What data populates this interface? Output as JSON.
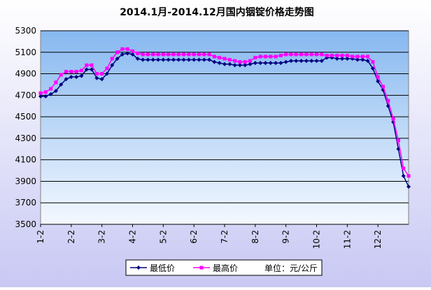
{
  "chart_data": {
    "type": "line",
    "title": "2014.1月-2014.12月国内铟锭价格走势图",
    "unit_label": "单位：元/公斤",
    "categories": [
      "1-2",
      null,
      null,
      null,
      null,
      null,
      "2-2",
      null,
      null,
      null,
      null,
      null,
      "3-2",
      null,
      null,
      null,
      null,
      null,
      "4-2",
      null,
      null,
      null,
      null,
      null,
      "5-2",
      null,
      null,
      null,
      null,
      null,
      "6-2",
      null,
      null,
      null,
      null,
      null,
      "7-2",
      null,
      null,
      null,
      null,
      null,
      "8-2",
      null,
      null,
      null,
      null,
      null,
      "9-2",
      null,
      null,
      null,
      null,
      null,
      "10-2",
      null,
      null,
      null,
      null,
      null,
      "11-2",
      null,
      null,
      null,
      null,
      null,
      "12-2",
      null,
      null,
      null,
      null,
      null,
      null
    ],
    "series": [
      {
        "name": "最低价",
        "color": "#000080",
        "marker": "diamond",
        "values": [
          4690,
          4690,
          4710,
          4740,
          4800,
          4850,
          4870,
          4870,
          4880,
          4940,
          4940,
          4860,
          4850,
          4900,
          4980,
          5040,
          5080,
          5090,
          5080,
          5040,
          5030,
          5030,
          5030,
          5030,
          5030,
          5030,
          5030,
          5030,
          5030,
          5030,
          5030,
          5030,
          5030,
          5030,
          5010,
          5000,
          4990,
          4990,
          4980,
          4980,
          4980,
          4990,
          5000,
          5000,
          5000,
          5000,
          5000,
          5000,
          5010,
          5020,
          5020,
          5020,
          5020,
          5020,
          5020,
          5020,
          5050,
          5050,
          5040,
          5040,
          5040,
          5040,
          5030,
          5030,
          5020,
          4950,
          4830,
          4750,
          4600,
          4450,
          4200,
          3950,
          3850
        ]
      },
      {
        "name": "最高价",
        "color": "#ff00ff",
        "marker": "square",
        "values": [
          4720,
          4730,
          4760,
          4820,
          4890,
          4920,
          4920,
          4920,
          4930,
          4980,
          4980,
          4900,
          4900,
          4950,
          5040,
          5100,
          5130,
          5130,
          5110,
          5090,
          5080,
          5080,
          5080,
          5080,
          5080,
          5080,
          5080,
          5080,
          5080,
          5080,
          5080,
          5080,
          5080,
          5080,
          5060,
          5050,
          5040,
          5030,
          5020,
          5010,
          5010,
          5020,
          5050,
          5060,
          5060,
          5060,
          5060,
          5070,
          5080,
          5080,
          5080,
          5080,
          5080,
          5080,
          5080,
          5080,
          5070,
          5070,
          5070,
          5070,
          5070,
          5060,
          5060,
          5060,
          5060,
          5010,
          4870,
          4780,
          4650,
          4480,
          4280,
          4020,
          3950
        ]
      }
    ],
    "ylim": [
      3500,
      5300
    ],
    "yticks": [
      3500,
      3700,
      3900,
      4100,
      4300,
      4500,
      4700,
      4900,
      5100,
      5300
    ],
    "grid": true
  }
}
